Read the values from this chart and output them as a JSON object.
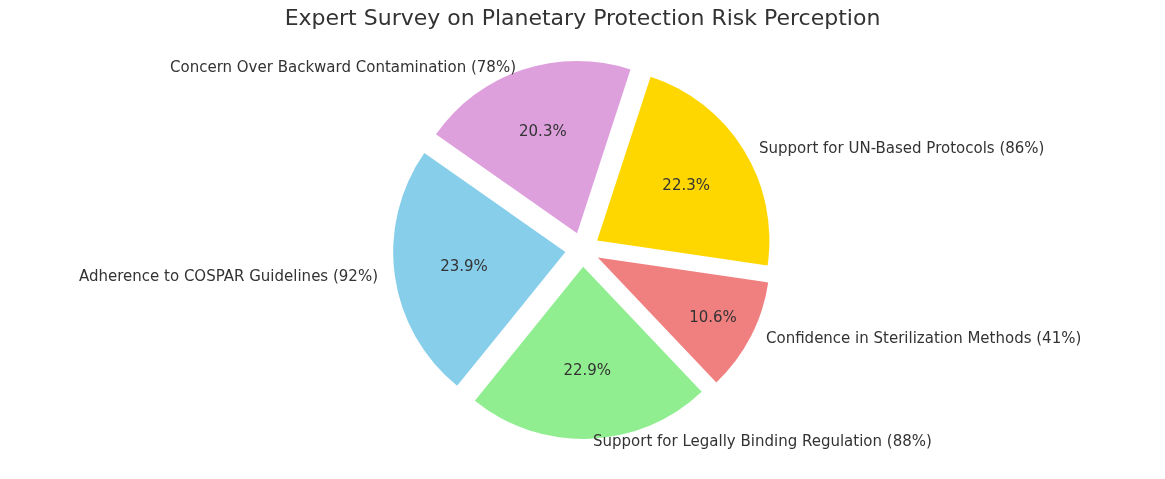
{
  "chart_data": {
    "type": "pie",
    "title": "Expert Survey on Planetary Protection Risk Perception",
    "categories": [
      "Adherence to COSPAR Guidelines (92%)",
      "Support for Legally Binding Regulation (88%)",
      "Confidence in Sterilization Methods (41%)",
      "Support for UN-Based Protocols (86%)",
      "Concern Over Backward Contamination (78%)"
    ],
    "values": [
      23.9,
      22.9,
      10.6,
      22.3,
      20.3
    ],
    "value_labels": [
      "23.9%",
      "22.9%",
      "10.6%",
      "22.3%",
      "20.3%"
    ],
    "colors": [
      "#87ceeb",
      "#90ee90",
      "#f08080",
      "#ffd700",
      "#dda0dd"
    ],
    "legend": false
  }
}
